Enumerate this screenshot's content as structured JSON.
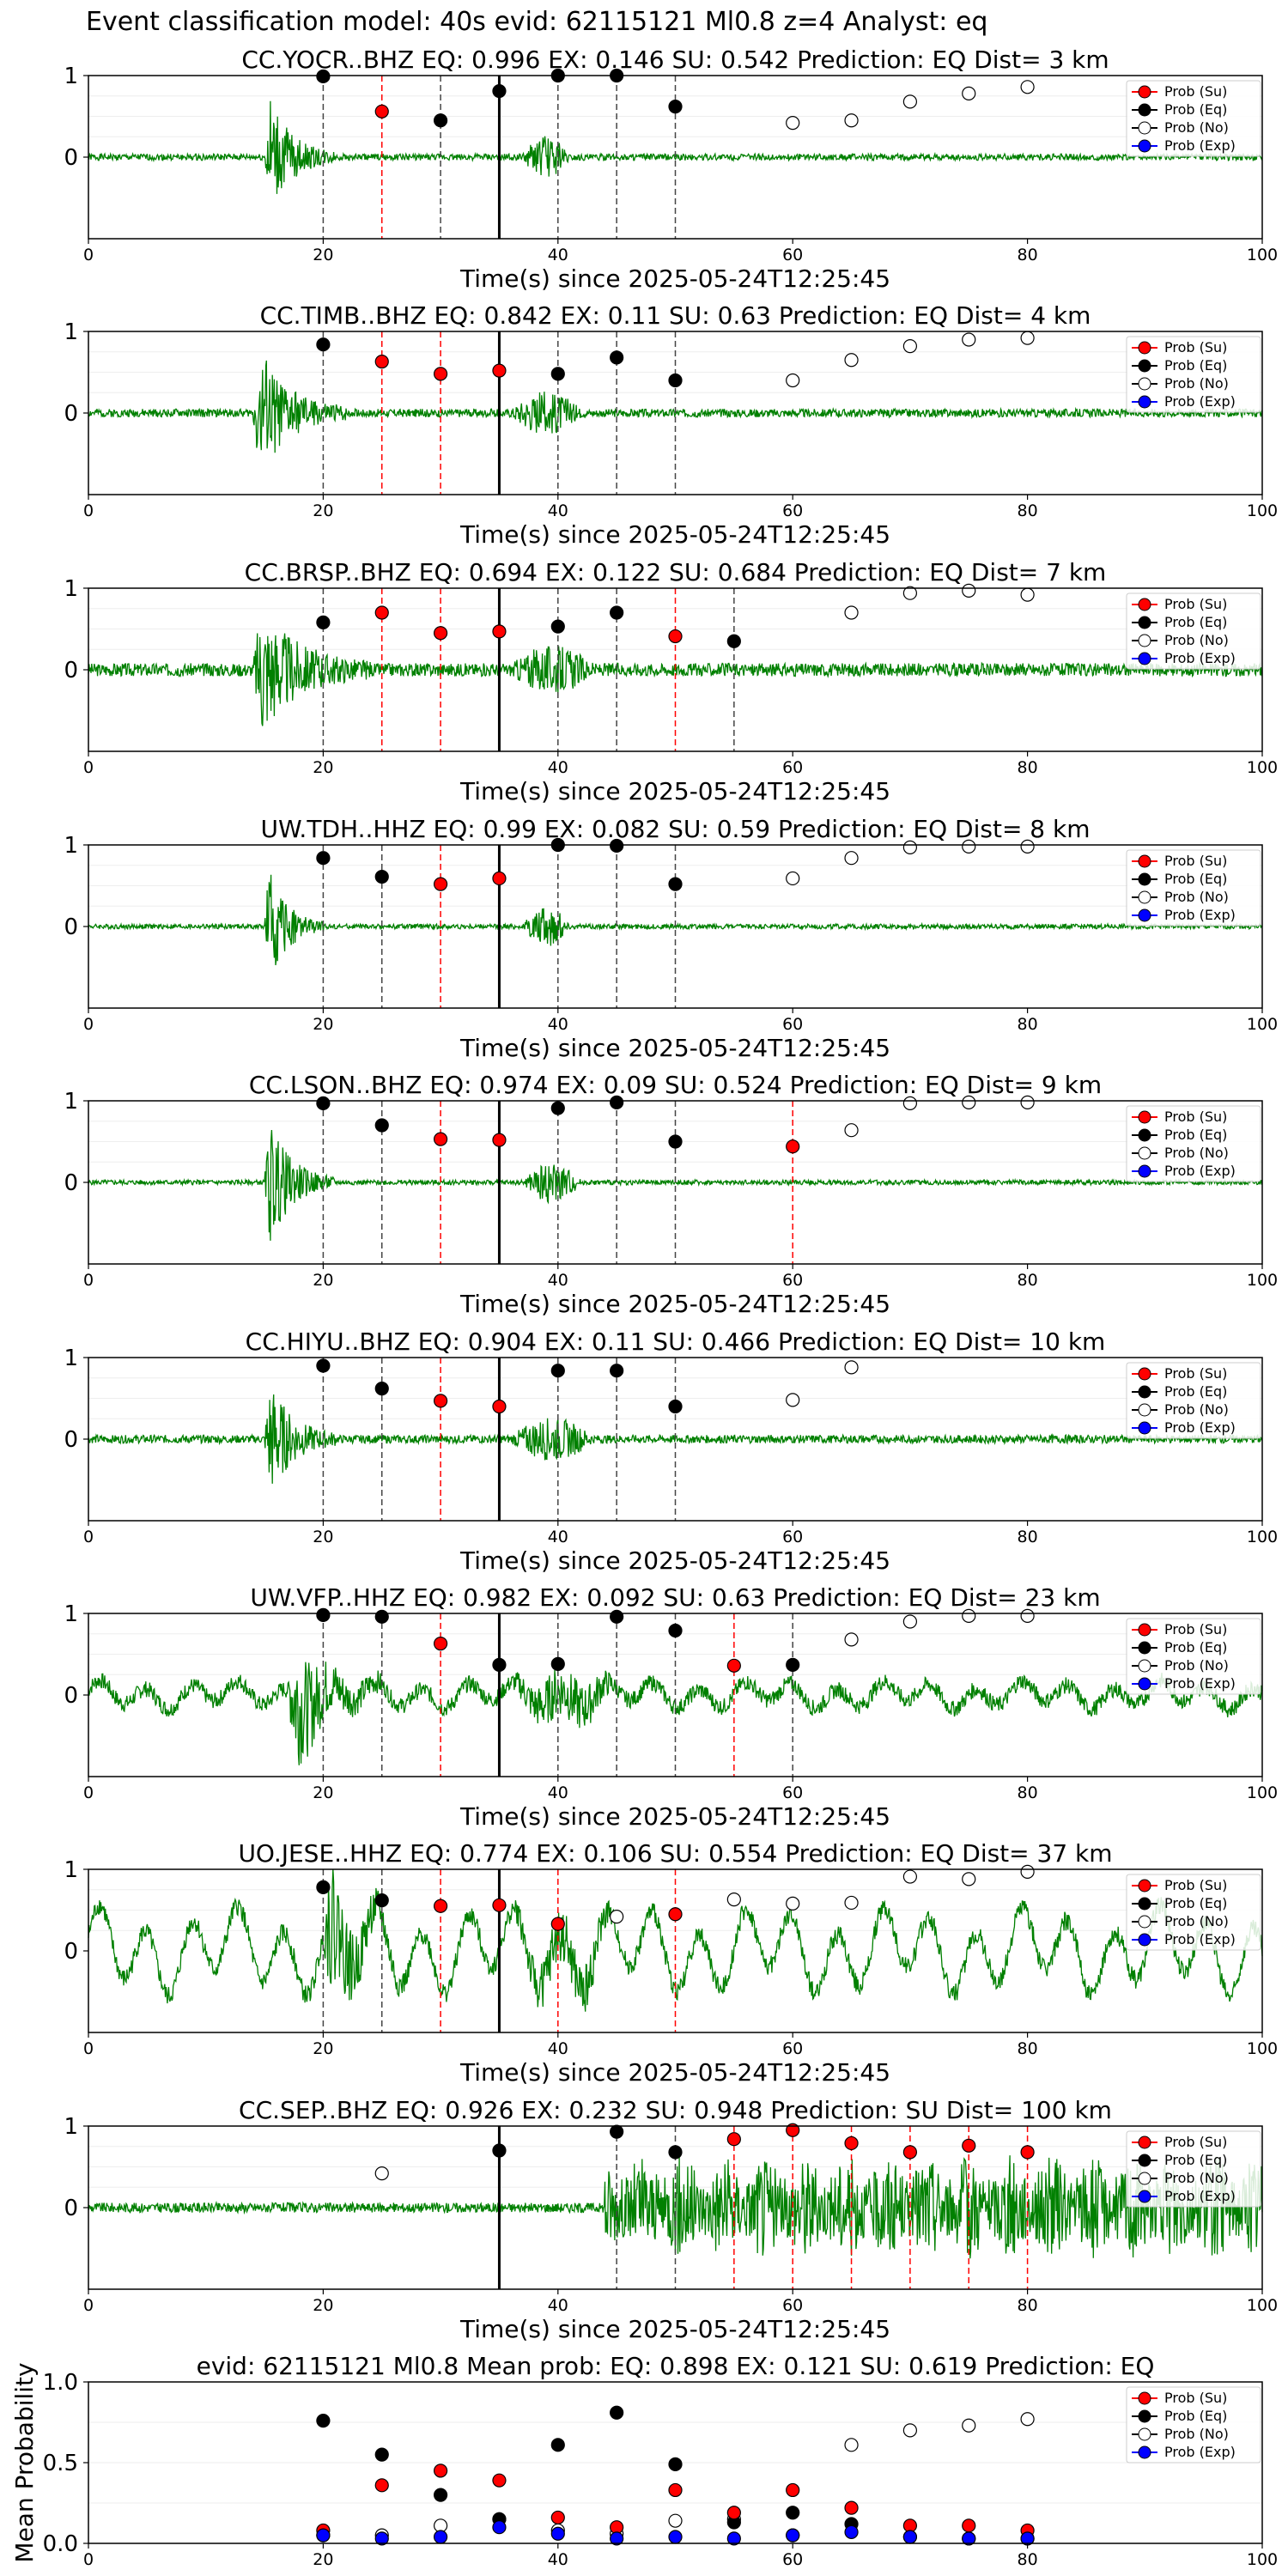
{
  "suptitle": "Event classification model: 40s evid: 62115121 Ml0.8 z=4 Analyst: eq",
  "colors": {
    "waveform": "#008000",
    "prob_su": "#ff0000",
    "prob_eq": "#000000",
    "prob_no": "#ffffff",
    "prob_exp": "#0000ff",
    "red_line": "#ff0000",
    "black_line": "#000000"
  },
  "legend_labels": [
    "Prob (Su)",
    "Prob (Eq)",
    "Prob (No)",
    "Prob (Exp)"
  ],
  "chart_data": [
    {
      "type": "line",
      "station": "CC.YOCR..BHZ",
      "title": "CC.YOCR..BHZ   EQ: 0.996  EX: 0.146  SU: 0.542   Prediction: EQ    Dist= 3 km",
      "xlabel": "Time(s) since 2025-05-24T12:25:45",
      "xlim": [
        0,
        100
      ],
      "ylim": [
        -1,
        1
      ],
      "xticks": [
        0,
        20,
        40,
        60,
        80,
        100
      ],
      "yticks": [
        0,
        1
      ],
      "grid": true,
      "legend": "upper right",
      "waveform": {
        "onset": 15,
        "burst_end": 21,
        "second_burst": [
          37,
          41
        ],
        "noise_level": 0.04,
        "peak": 0.9,
        "seed": 1
      },
      "pick_line": 35,
      "windows": [
        {
          "x": 20,
          "cls": "eq",
          "p": 0.99
        },
        {
          "x": 25,
          "cls": "su",
          "p": 0.56
        },
        {
          "x": 30,
          "cls": "eq",
          "p": 0.45
        },
        {
          "x": 35,
          "cls": "eq",
          "p": 0.81
        },
        {
          "x": 40,
          "cls": "eq",
          "p": 1.0
        },
        {
          "x": 45,
          "cls": "eq",
          "p": 1.0
        },
        {
          "x": 50,
          "cls": "eq",
          "p": 0.62
        },
        {
          "x": 60,
          "cls": "no",
          "p": 0.42
        },
        {
          "x": 65,
          "cls": "no",
          "p": 0.45
        },
        {
          "x": 70,
          "cls": "no",
          "p": 0.68
        },
        {
          "x": 75,
          "cls": "no",
          "p": 0.78
        },
        {
          "x": 80,
          "cls": "no",
          "p": 0.86
        }
      ]
    },
    {
      "type": "line",
      "station": "CC.TIMB..BHZ",
      "title": "CC.TIMB..BHZ   EQ: 0.842  EX: 0.11  SU: 0.63   Prediction: EQ    Dist= 4 km",
      "xlabel": "Time(s) since 2025-05-24T12:25:45",
      "xlim": [
        0,
        100
      ],
      "ylim": [
        -1,
        1
      ],
      "xticks": [
        0,
        20,
        40,
        60,
        80,
        100
      ],
      "yticks": [
        0,
        1
      ],
      "grid": true,
      "legend": "upper right",
      "waveform": {
        "onset": 14,
        "burst_end": 22,
        "second_burst": [
          36,
          42
        ],
        "noise_level": 0.05,
        "peak": 0.95,
        "seed": 2
      },
      "pick_line": 35,
      "windows": [
        {
          "x": 20,
          "cls": "eq",
          "p": 0.84
        },
        {
          "x": 25,
          "cls": "su",
          "p": 0.63
        },
        {
          "x": 30,
          "cls": "su",
          "p": 0.48
        },
        {
          "x": 35,
          "cls": "su",
          "p": 0.52
        },
        {
          "x": 40,
          "cls": "eq",
          "p": 0.48
        },
        {
          "x": 45,
          "cls": "eq",
          "p": 0.68
        },
        {
          "x": 50,
          "cls": "eq",
          "p": 0.4
        },
        {
          "x": 60,
          "cls": "no",
          "p": 0.4
        },
        {
          "x": 65,
          "cls": "no",
          "p": 0.65
        },
        {
          "x": 70,
          "cls": "no",
          "p": 0.82
        },
        {
          "x": 75,
          "cls": "no",
          "p": 0.9
        },
        {
          "x": 80,
          "cls": "no",
          "p": 0.92
        }
      ]
    },
    {
      "type": "line",
      "station": "CC.BRSP..BHZ",
      "title": "CC.BRSP..BHZ   EQ: 0.694  EX: 0.122  SU: 0.684   Prediction: EQ    Dist= 7 km",
      "xlabel": "Time(s) since 2025-05-24T12:25:45",
      "xlim": [
        0,
        100
      ],
      "ylim": [
        -1,
        1
      ],
      "xticks": [
        0,
        20,
        40,
        60,
        80,
        100
      ],
      "yticks": [
        0,
        1
      ],
      "grid": true,
      "legend": "upper right",
      "waveform": {
        "onset": 14,
        "burst_end": 24,
        "second_burst": [
          36,
          43
        ],
        "noise_level": 0.08,
        "peak": 0.95,
        "seed": 3
      },
      "pick_line": 35,
      "windows": [
        {
          "x": 20,
          "cls": "eq",
          "p": 0.58
        },
        {
          "x": 25,
          "cls": "su",
          "p": 0.7
        },
        {
          "x": 30,
          "cls": "su",
          "p": 0.45
        },
        {
          "x": 35,
          "cls": "su",
          "p": 0.47
        },
        {
          "x": 40,
          "cls": "eq",
          "p": 0.53
        },
        {
          "x": 45,
          "cls": "eq",
          "p": 0.7
        },
        {
          "x": 50,
          "cls": "su",
          "p": 0.41
        },
        {
          "x": 55,
          "cls": "eq",
          "p": 0.35
        },
        {
          "x": 65,
          "cls": "no",
          "p": 0.7
        },
        {
          "x": 70,
          "cls": "no",
          "p": 0.94
        },
        {
          "x": 75,
          "cls": "no",
          "p": 0.97
        },
        {
          "x": 80,
          "cls": "no",
          "p": 0.92
        }
      ]
    },
    {
      "type": "line",
      "station": "UW.TDH..HHZ",
      "title": "UW.TDH..HHZ   EQ: 0.99  EX: 0.082  SU: 0.59   Prediction: EQ    Dist= 8 km",
      "xlabel": "Time(s) since 2025-05-24T12:25:45",
      "xlim": [
        0,
        100
      ],
      "ylim": [
        -1,
        1
      ],
      "xticks": [
        0,
        20,
        40,
        60,
        80,
        100
      ],
      "yticks": [
        0,
        1
      ],
      "grid": true,
      "legend": "upper right",
      "waveform": {
        "onset": 15,
        "burst_end": 20,
        "second_burst": [
          37,
          41
        ],
        "noise_level": 0.03,
        "peak": 0.9,
        "seed": 4
      },
      "pick_line": 35,
      "windows": [
        {
          "x": 20,
          "cls": "eq",
          "p": 0.84
        },
        {
          "x": 25,
          "cls": "eq",
          "p": 0.61
        },
        {
          "x": 30,
          "cls": "su",
          "p": 0.52
        },
        {
          "x": 35,
          "cls": "su",
          "p": 0.59
        },
        {
          "x": 40,
          "cls": "eq",
          "p": 1.0
        },
        {
          "x": 45,
          "cls": "eq",
          "p": 0.99
        },
        {
          "x": 50,
          "cls": "eq",
          "p": 0.52
        },
        {
          "x": 60,
          "cls": "no",
          "p": 0.59
        },
        {
          "x": 65,
          "cls": "no",
          "p": 0.84
        },
        {
          "x": 70,
          "cls": "no",
          "p": 0.97
        },
        {
          "x": 75,
          "cls": "no",
          "p": 0.98
        },
        {
          "x": 80,
          "cls": "no",
          "p": 0.98
        }
      ]
    },
    {
      "type": "line",
      "station": "CC.LSON..BHZ",
      "title": "CC.LSON..BHZ   EQ: 0.974  EX: 0.09  SU: 0.524   Prediction: EQ    Dist= 9 km",
      "xlabel": "Time(s) since 2025-05-24T12:25:45",
      "xlim": [
        0,
        100
      ],
      "ylim": [
        -1,
        1
      ],
      "xticks": [
        0,
        20,
        40,
        60,
        80,
        100
      ],
      "yticks": [
        0,
        1
      ],
      "grid": true,
      "legend": "upper right",
      "waveform": {
        "onset": 15,
        "burst_end": 21,
        "second_burst": [
          37,
          42
        ],
        "noise_level": 0.03,
        "peak": 0.95,
        "seed": 5
      },
      "pick_line": 35,
      "windows": [
        {
          "x": 20,
          "cls": "eq",
          "p": 0.97
        },
        {
          "x": 25,
          "cls": "eq",
          "p": 0.7
        },
        {
          "x": 30,
          "cls": "su",
          "p": 0.53
        },
        {
          "x": 35,
          "cls": "su",
          "p": 0.52
        },
        {
          "x": 40,
          "cls": "eq",
          "p": 0.91
        },
        {
          "x": 45,
          "cls": "eq",
          "p": 0.98
        },
        {
          "x": 50,
          "cls": "eq",
          "p": 0.5
        },
        {
          "x": 60,
          "cls": "su",
          "p": 0.44
        },
        {
          "x": 65,
          "cls": "no",
          "p": 0.64
        },
        {
          "x": 70,
          "cls": "no",
          "p": 0.97
        },
        {
          "x": 75,
          "cls": "no",
          "p": 0.98
        },
        {
          "x": 80,
          "cls": "no",
          "p": 0.98
        }
      ]
    },
    {
      "type": "line",
      "station": "CC.HIYU..BHZ",
      "title": "CC.HIYU..BHZ   EQ: 0.904  EX: 0.11  SU: 0.466   Prediction: EQ    Dist= 10 km",
      "xlabel": "Time(s) since 2025-05-24T12:25:45",
      "xlim": [
        0,
        100
      ],
      "ylim": [
        -1,
        1
      ],
      "xticks": [
        0,
        20,
        40,
        60,
        80,
        100
      ],
      "yticks": [
        0,
        1
      ],
      "grid": true,
      "legend": "upper right",
      "waveform": {
        "onset": 15,
        "burst_end": 21,
        "second_burst": [
          36,
          43
        ],
        "noise_level": 0.05,
        "peak": 0.9,
        "seed": 6
      },
      "pick_line": 35,
      "windows": [
        {
          "x": 20,
          "cls": "eq",
          "p": 0.9
        },
        {
          "x": 25,
          "cls": "eq",
          "p": 0.62
        },
        {
          "x": 30,
          "cls": "su",
          "p": 0.47
        },
        {
          "x": 35,
          "cls": "su",
          "p": 0.4
        },
        {
          "x": 40,
          "cls": "eq",
          "p": 0.84
        },
        {
          "x": 45,
          "cls": "eq",
          "p": 0.84
        },
        {
          "x": 50,
          "cls": "eq",
          "p": 0.4
        },
        {
          "x": 60,
          "cls": "no",
          "p": 0.48
        },
        {
          "x": 65,
          "cls": "no",
          "p": 0.88
        }
      ]
    },
    {
      "type": "line",
      "station": "UW.VFP..HHZ",
      "title": "UW.VFP..HHZ   EQ: 0.982  EX: 0.092  SU: 0.63   Prediction: EQ    Dist= 23 km",
      "xlabel": "Time(s) since 2025-05-24T12:25:45",
      "xlim": [
        0,
        100
      ],
      "ylim": [
        -1,
        1
      ],
      "xticks": [
        0,
        20,
        40,
        60,
        80,
        100
      ],
      "yticks": [
        0,
        1
      ],
      "grid": true,
      "legend": "upper right",
      "waveform": {
        "onset": 17,
        "burst_end": 25,
        "second_burst": [
          36,
          45
        ],
        "noise_level": 0.1,
        "peak": 0.95,
        "seed": 7,
        "swell": 0.12
      },
      "pick_line": 35,
      "windows": [
        {
          "x": 20,
          "cls": "eq",
          "p": 0.98
        },
        {
          "x": 25,
          "cls": "eq",
          "p": 0.96
        },
        {
          "x": 30,
          "cls": "su",
          "p": 0.63
        },
        {
          "x": 35,
          "cls": "eq",
          "p": 0.37
        },
        {
          "x": 40,
          "cls": "eq",
          "p": 0.38
        },
        {
          "x": 45,
          "cls": "eq",
          "p": 0.96
        },
        {
          "x": 50,
          "cls": "eq",
          "p": 0.79
        },
        {
          "x": 55,
          "cls": "su",
          "p": 0.36
        },
        {
          "x": 60,
          "cls": "eq",
          "p": 0.37
        },
        {
          "x": 65,
          "cls": "no",
          "p": 0.68
        },
        {
          "x": 70,
          "cls": "no",
          "p": 0.9
        },
        {
          "x": 75,
          "cls": "no",
          "p": 0.97
        },
        {
          "x": 80,
          "cls": "no",
          "p": 0.97
        }
      ]
    },
    {
      "type": "line",
      "station": "UO.JESE..HHZ",
      "title": "UO.JESE..HHZ   EQ: 0.774  EX: 0.106  SU: 0.554   Prediction: EQ    Dist= 37 km",
      "xlabel": "Time(s) since 2025-05-24T12:25:45",
      "xlim": [
        0,
        100
      ],
      "ylim": [
        -1,
        1
      ],
      "xticks": [
        0,
        20,
        40,
        60,
        80,
        100
      ],
      "yticks": [
        0,
        1
      ],
      "grid": true,
      "legend": "upper right",
      "waveform": {
        "onset": 20,
        "burst_end": 27,
        "second_burst": [
          36,
          45
        ],
        "noise_level": 0.12,
        "peak": 0.95,
        "seed": 8,
        "swell": 0.38
      },
      "pick_line": 35,
      "windows": [
        {
          "x": 20,
          "cls": "eq",
          "p": 0.78
        },
        {
          "x": 25,
          "cls": "eq",
          "p": 0.62
        },
        {
          "x": 30,
          "cls": "su",
          "p": 0.55
        },
        {
          "x": 35,
          "cls": "su",
          "p": 0.56
        },
        {
          "x": 40,
          "cls": "su",
          "p": 0.33
        },
        {
          "x": 45,
          "cls": "no",
          "p": 0.42
        },
        {
          "x": 50,
          "cls": "su",
          "p": 0.45
        },
        {
          "x": 55,
          "cls": "no",
          "p": 0.63
        },
        {
          "x": 60,
          "cls": "no",
          "p": 0.58
        },
        {
          "x": 65,
          "cls": "no",
          "p": 0.59
        },
        {
          "x": 70,
          "cls": "no",
          "p": 0.91
        },
        {
          "x": 75,
          "cls": "no",
          "p": 0.88
        },
        {
          "x": 80,
          "cls": "no",
          "p": 0.97
        }
      ]
    },
    {
      "type": "line",
      "station": "CC.SEP..BHZ",
      "title": "CC.SEP..BHZ   EQ: 0.926  EX: 0.232  SU: 0.948   Prediction: SU    Dist= 100 km",
      "xlabel": "Time(s) since 2025-05-24T12:25:45",
      "xlim": [
        0,
        100
      ],
      "ylim": [
        -1,
        1
      ],
      "xticks": [
        0,
        20,
        40,
        60,
        80,
        100
      ],
      "yticks": [
        0,
        1
      ],
      "grid": true,
      "legend": "upper right",
      "waveform": {
        "onset": 44,
        "burst_end": 100,
        "second_burst": [
          44,
          44
        ],
        "noise_level": 0.06,
        "peak": 0.65,
        "seed": 9,
        "sustained": true
      },
      "pick_line": 35,
      "windows": [
        {
          "x": 25,
          "cls": "no",
          "p": 0.42
        },
        {
          "x": 35,
          "cls": "eq",
          "p": 0.7
        },
        {
          "x": 45,
          "cls": "eq",
          "p": 0.93
        },
        {
          "x": 50,
          "cls": "eq",
          "p": 0.68
        },
        {
          "x": 55,
          "cls": "su",
          "p": 0.84
        },
        {
          "x": 60,
          "cls": "su",
          "p": 0.95
        },
        {
          "x": 65,
          "cls": "su",
          "p": 0.79
        },
        {
          "x": 70,
          "cls": "su",
          "p": 0.68
        },
        {
          "x": 75,
          "cls": "su",
          "p": 0.76
        },
        {
          "x": 80,
          "cls": "su",
          "p": 0.68
        }
      ]
    },
    {
      "type": "scatter",
      "title": "evid: 62115121  Ml0.8   Mean prob:    EQ: 0.898  EX: 0.121  SU: 0.619   Prediction: EQ",
      "ylabel": "Mean Probability",
      "xlim": [
        0,
        100
      ],
      "ylim": [
        0,
        1
      ],
      "xticks": [
        0,
        20,
        40,
        60,
        80,
        100
      ],
      "yticks": [
        0.0,
        0.5,
        1.0
      ],
      "grid": true,
      "legend": "upper right",
      "x": [
        20,
        25,
        30,
        35,
        40,
        45,
        50,
        55,
        60,
        65,
        70,
        75,
        80
      ],
      "series": [
        {
          "name": "Prob (Su)",
          "values": [
            0.08,
            0.36,
            0.45,
            0.39,
            0.16,
            0.1,
            0.33,
            0.19,
            0.33,
            0.22,
            0.11,
            0.11,
            0.08
          ]
        },
        {
          "name": "Prob (Eq)",
          "values": [
            0.76,
            0.55,
            0.3,
            0.15,
            0.61,
            0.81,
            0.49,
            0.13,
            0.19,
            0.12,
            0.04,
            0.03,
            0.03
          ]
        },
        {
          "name": "Prob (No)",
          "values": [
            0.05,
            0.05,
            0.11,
            0.15,
            0.08,
            0.06,
            0.14,
            0.15,
            0.05,
            0.61,
            0.7,
            0.73,
            0.77
          ]
        },
        {
          "name": "Prob (Exp)",
          "values": [
            0.05,
            0.03,
            0.04,
            0.1,
            0.06,
            0.03,
            0.04,
            0.03,
            0.05,
            0.07,
            0.04,
            0.03,
            0.03
          ]
        }
      ]
    }
  ]
}
